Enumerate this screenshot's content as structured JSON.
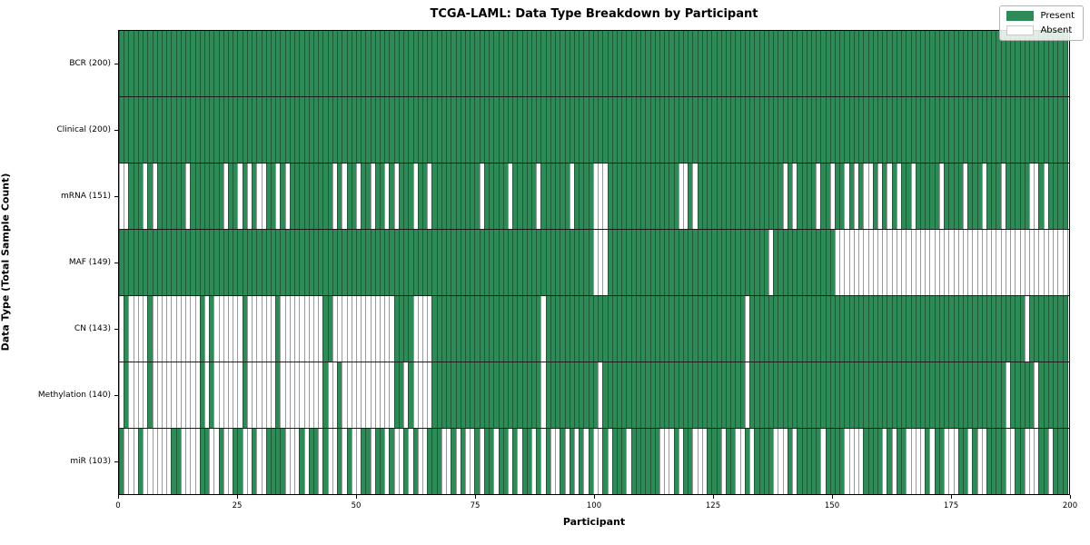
{
  "title": "TCGA-LAML: Data Type Breakdown by Participant",
  "xlabel": "Participant",
  "ylabel": "Data Type (Total Sample Count)",
  "legend": {
    "present_label": "Present",
    "absent_label": "Absent"
  },
  "colors": {
    "present_fill": "#2e8b57",
    "present_edge": "#1d5a36",
    "absent_fill": "#ffffff",
    "absent_edge": "#9a9a9a",
    "row_separator": "#1c1c1c",
    "plot_border": "#000000"
  },
  "chart_data": {
    "type": "heatmap",
    "title": "TCGA-LAML: Data Type Breakdown by Participant",
    "xlabel": "Participant",
    "ylabel": "Data Type (Total Sample Count)",
    "x_range": [
      0,
      200
    ],
    "x_ticks": [
      0,
      25,
      50,
      75,
      100,
      125,
      150,
      175,
      200
    ],
    "n_participants": 200,
    "legend_entries": [
      "Present",
      "Absent"
    ],
    "legend_position": "upper right",
    "cell_values": {
      "present": 1,
      "absent": 0
    },
    "rows": [
      {
        "label": "BCR (200)",
        "data_type": "BCR",
        "present_count": 200,
        "pattern": "11111111111111111111111111111111111111111111111111111111111111111111111111111111111111111111111111111111111111111111111111111111111111111111111111111111111111111111111111111111111111111111111111111111"
      },
      {
        "label": "Clinical (200)",
        "data_type": "Clinical",
        "present_count": 200,
        "pattern": "11111111111111111111111111111111111111111111111111111111111111111111111111111111111111111111111111111111111111111111111111111111111111111111111111111111111111111111111111111111111111111111111111111111"
      },
      {
        "label": "mRNA (151)",
        "data_type": "mRNA",
        "present_count": 151,
        "pattern": "00111010111111011111110110101001101011111111101011011011010111011011111111110111110111110111111011110001111111111111110010111111111111111111010111101101101010010101011011111011110111011101111100101111"
      },
      {
        "label": "MAF (149)",
        "data_type": "MAF",
        "present_count": 149,
        "pattern": "11111111111111111111111111111111111111111111111111111111111111111111111111111111111111111111111111110001111111111111111111111111111111111011111111111110000000000000000000000000000000000000000000000000"
      },
      {
        "label": "CN (143)",
        "data_type": "CN",
        "present_count": 143,
        "pattern": "01000010000000000101000000100000010000000001100000000000001111000011111111111111111111111011111111111111111111111111111111111111111101111111111111111111111111111111111111111111111111111111111011111111"
      },
      {
        "label": "Methylation (140)",
        "data_type": "Methylation",
        "present_count": 140,
        "pattern": "01000010000000000101000000100000010000000001001000000000001101000011111111111111111111111011111111111011111111111111111111111111111101111111111111111111111111111111111111111111111111111110111110111111"
      },
      {
        "label": "miR (103)",
        "data_type": "miR",
        "present_count": 103,
        "pattern": "10001000000110000110010011001001111000101101001010011011010010100111001010010110110101101010010101010010111011111100010110001110110010111100010111110111100001111010110000101100011010011110011000110111"
      }
    ]
  }
}
